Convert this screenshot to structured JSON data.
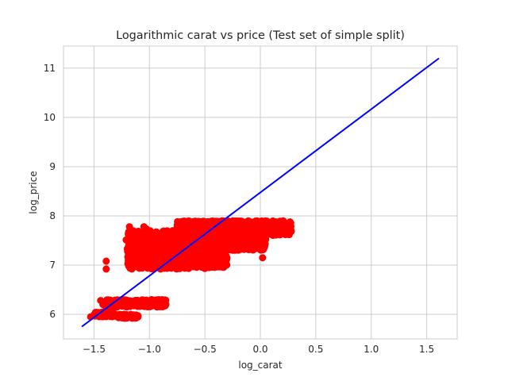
{
  "chart_data": {
    "type": "scatter",
    "title": "Logarithmic carat vs price (Test set of simple split)",
    "xlabel": "log_carat",
    "ylabel": "log_price",
    "xlim": [
      -1.775,
      1.775
    ],
    "ylim": [
      5.5,
      11.45
    ],
    "xticks": [
      -1.5,
      -1.0,
      -0.5,
      0.0,
      0.5,
      1.0,
      1.5
    ],
    "xtick_labels": [
      "−1.5",
      "−1.0",
      "−0.5",
      "0.0",
      "0.5",
      "1.0",
      "1.5"
    ],
    "yticks": [
      6,
      7,
      8,
      9,
      10,
      11
    ],
    "ytick_labels": [
      "6",
      "7",
      "8",
      "9",
      "10",
      "11"
    ],
    "grid": true,
    "point_color": "#ff0000",
    "line_color": "#0000ff",
    "regression_line": {
      "x": [
        -1.61,
        1.61
      ],
      "y": [
        5.75,
        11.2
      ]
    },
    "clusters": [
      {
        "x_range": [
          -1.4,
          -0.85
        ],
        "y_range": [
          6.15,
          6.3
        ],
        "count": 320
      },
      {
        "x_range": [
          -1.5,
          -1.3
        ],
        "y_range": [
          5.95,
          6.05
        ],
        "count": 60
      },
      {
        "x_range": [
          -1.3,
          -1.1
        ],
        "y_range": [
          5.92,
          6.0
        ],
        "count": 80
      },
      {
        "x_range": [
          -1.2,
          -0.6
        ],
        "y_range": [
          6.92,
          7.7
        ],
        "count": 700
      },
      {
        "x_range": [
          -0.75,
          -0.3
        ],
        "y_range": [
          6.95,
          7.9
        ],
        "count": 1200
      },
      {
        "x_range": [
          -0.35,
          0.05
        ],
        "y_range": [
          7.3,
          7.9
        ],
        "count": 700
      },
      {
        "x_range": [
          0.0,
          0.28
        ],
        "y_range": [
          7.6,
          7.9
        ],
        "count": 120
      }
    ],
    "points": [
      [
        -1.53,
        5.95
      ],
      [
        -1.39,
        7.08
      ],
      [
        -1.39,
        6.92
      ],
      [
        -1.21,
        7.51
      ],
      [
        -1.18,
        7.78
      ],
      [
        -1.12,
        7.55
      ],
      [
        -1.05,
        7.78
      ],
      [
        -1.03,
        7.74
      ],
      [
        -0.99,
        6.18
      ],
      [
        -0.86,
        6.2
      ],
      [
        0.02,
        7.15
      ],
      [
        0.27,
        7.85
      ],
      [
        -1.42,
        6.2
      ],
      [
        -1.44,
        6.28
      ],
      [
        -1.13,
        5.97
      ],
      [
        -1.19,
        5.95
      ],
      [
        -0.95,
        6.26
      ],
      [
        -1.07,
        6.99
      ],
      [
        -1.16,
        7.02
      ],
      [
        -0.5,
        6.93
      ]
    ]
  }
}
